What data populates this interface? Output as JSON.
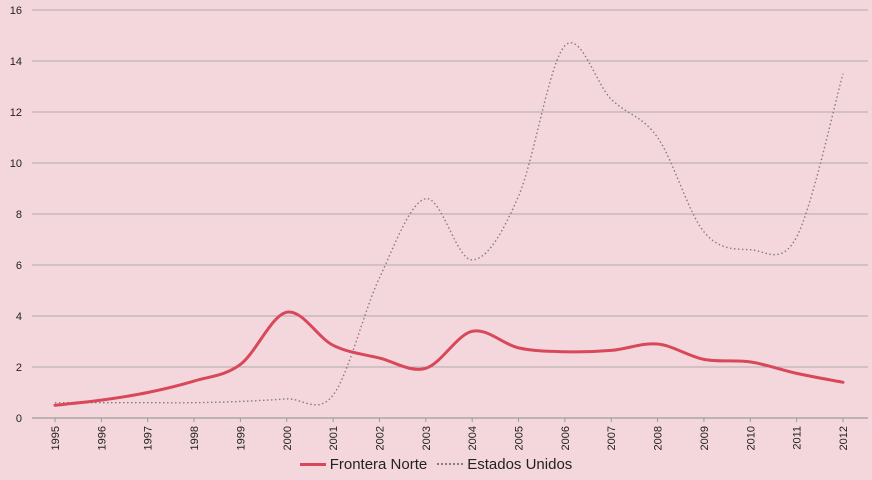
{
  "chart_data": {
    "type": "line",
    "title": "",
    "xlabel": "",
    "ylabel": "",
    "ylim": [
      0,
      16
    ],
    "yticks": [
      "0",
      "2",
      "4",
      "6",
      "8",
      "10",
      "12",
      "14",
      "16"
    ],
    "categories": [
      "1995",
      "1996",
      "1997",
      "1998",
      "1999",
      "2000",
      "2001",
      "2002",
      "2003",
      "2004",
      "2005",
      "2006",
      "2007",
      "2008",
      "2009",
      "2010",
      "2011",
      "2012"
    ],
    "series": [
      {
        "name": "Frontera Norte",
        "color": "#d9485a",
        "style": "solid",
        "values": [
          0.5,
          0.7,
          1.0,
          1.45,
          2.1,
          4.15,
          2.85,
          2.35,
          1.95,
          3.4,
          2.75,
          2.6,
          2.65,
          2.9,
          2.3,
          2.2,
          1.75,
          1.4
        ]
      },
      {
        "name": "Estados Unidos",
        "color": "#7f7f7f",
        "style": "dotted",
        "values": [
          0.6,
          0.6,
          0.6,
          0.6,
          0.65,
          0.75,
          0.9,
          5.5,
          8.6,
          6.2,
          8.7,
          14.6,
          12.5,
          11.0,
          7.3,
          6.6,
          7.1,
          13.5
        ]
      }
    ],
    "grid": true,
    "legend_position": "bottom-center"
  },
  "colors": {
    "background": "#f4d7dc",
    "grid": "#9a9a9a",
    "axis_text": "#222222"
  }
}
